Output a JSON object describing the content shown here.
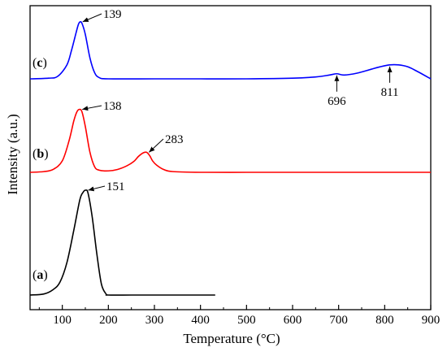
{
  "chart_data": {
    "type": "line",
    "xlabel": "Temperature (°C)",
    "ylabel": "Intensity (a.u.)",
    "xlim": [
      30,
      900
    ],
    "xticks": [
      100,
      200,
      300,
      400,
      500,
      600,
      700,
      800,
      900
    ],
    "y_tick_labels": false,
    "grid": false,
    "legend": "none",
    "series": [
      {
        "name": "(c)",
        "color": "#0000ff",
        "x": [
          30,
          70,
          90,
          110,
          120,
          130,
          135,
          139,
          143,
          150,
          160,
          170,
          180,
          200,
          300,
          400,
          500,
          600,
          650,
          680,
          696,
          712,
          740,
          770,
          790,
          811,
          830,
          850,
          870,
          900
        ],
        "y": [
          0,
          0.01,
          0.04,
          0.22,
          0.45,
          0.73,
          0.86,
          0.9,
          0.87,
          0.7,
          0.33,
          0.1,
          0.02,
          0.0,
          0.0,
          0.0,
          0.0,
          0.01,
          0.03,
          0.06,
          0.08,
          0.06,
          0.09,
          0.15,
          0.19,
          0.22,
          0.22,
          0.19,
          0.12,
          0.0
        ]
      },
      {
        "name": "(b)",
        "color": "#ff0000",
        "x": [
          30,
          60,
          80,
          100,
          115,
          125,
          132,
          138,
          143,
          150,
          160,
          170,
          180,
          200,
          220,
          240,
          255,
          265,
          275,
          283,
          290,
          296,
          305,
          320,
          340,
          400,
          500,
          600,
          700,
          800,
          900
        ],
        "y": [
          0,
          0.01,
          0.04,
          0.16,
          0.45,
          0.72,
          0.85,
          0.88,
          0.84,
          0.64,
          0.28,
          0.08,
          0.03,
          0.02,
          0.04,
          0.09,
          0.15,
          0.22,
          0.27,
          0.28,
          0.23,
          0.16,
          0.1,
          0.04,
          0.01,
          0.0,
          0.0,
          0.0,
          0.0,
          0.0,
          0.0
        ]
      },
      {
        "name": "(a)",
        "color": "#000000",
        "x": [
          30,
          60,
          80,
          95,
          110,
          125,
          138,
          145,
          151,
          156,
          165,
          175,
          185,
          195,
          200,
          250,
          300,
          350,
          400,
          432
        ],
        "y": [
          0,
          0.01,
          0.05,
          0.12,
          0.3,
          0.6,
          0.88,
          0.95,
          0.97,
          0.94,
          0.72,
          0.38,
          0.1,
          0.01,
          0,
          0,
          0,
          0,
          0,
          0
        ]
      }
    ],
    "annotations": [
      {
        "text": "139",
        "series": "(c)",
        "x": 139
      },
      {
        "text": "138",
        "series": "(b)",
        "x": 138
      },
      {
        "text": "283",
        "series": "(b)",
        "x": 283
      },
      {
        "text": "696",
        "series": "(c)",
        "x": 696
      },
      {
        "text": "811",
        "series": "(c)",
        "x": 811
      },
      {
        "text": "151",
        "series": "(a)",
        "x": 151
      }
    ]
  }
}
